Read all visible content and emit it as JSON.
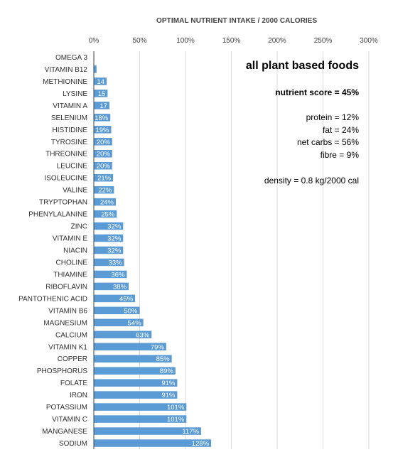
{
  "chart_data": {
    "type": "bar",
    "orientation": "horizontal",
    "title": "OPTIMAL NUTRIENT INTAKE / 2000 CALORIES",
    "xlim": [
      0,
      300
    ],
    "xticks": [
      "0%",
      "50%",
      "100%",
      "150%",
      "200%",
      "250%",
      "300%"
    ],
    "grid": true,
    "categories": [
      "OMEGA 3",
      "VITAMIN B12",
      "METHIONINE",
      "LYSINE",
      "VITAMIN A",
      "SELENIUM",
      "HISTIDINE",
      "TYROSINE",
      "THREONINE",
      "LEUCINE",
      "ISOLEUCINE",
      "VALINE",
      "TRYPTOPHAN",
      "PHENYLALANINE",
      "ZINC",
      "VITAMIN E",
      "NIACIN",
      "CHOLINE",
      "THIAMINE",
      "RIBOFLAVIN",
      "PANTOTHENIC ACID",
      "VITAMIN B6",
      "MAGNESIUM",
      "CALCIUM",
      "VITAMIN K1",
      "COPPER",
      "PHOSPHORUS",
      "FOLATE",
      "IRON",
      "POTASSIUM",
      "VITAMIN C",
      "MANGANESE",
      "SODIUM"
    ],
    "values": [
      0.5,
      3,
      14,
      15,
      17,
      18,
      19,
      20,
      20,
      20,
      21,
      22,
      24,
      25,
      32,
      32,
      32,
      33,
      36,
      38,
      45,
      50,
      54,
      63,
      79,
      85,
      89,
      91,
      91,
      101,
      101,
      117,
      128
    ],
    "labels": [
      "",
      "",
      "14",
      "15",
      "17",
      "18%",
      "19%",
      "20%",
      "20%",
      "20%",
      "21%",
      "22%",
      "24%",
      "25%",
      "32%",
      "32%",
      "32%",
      "33%",
      "36%",
      "38%",
      "45%",
      "50%",
      "54%",
      "63%",
      "79%",
      "85%",
      "89%",
      "91%",
      "91%",
      "101%",
      "101%",
      "117%",
      "128%"
    ],
    "bar_color": "#5b9bd5"
  },
  "annotations": {
    "heading": "all plant based foods",
    "score": "nutrient score = 45%",
    "protein": "protein = 12%",
    "fat": "fat = 24%",
    "net_carbs": "net carbs = 56%",
    "fibre": "fibre = 9%",
    "density": "density = 0.8 kg/2000 cal"
  }
}
